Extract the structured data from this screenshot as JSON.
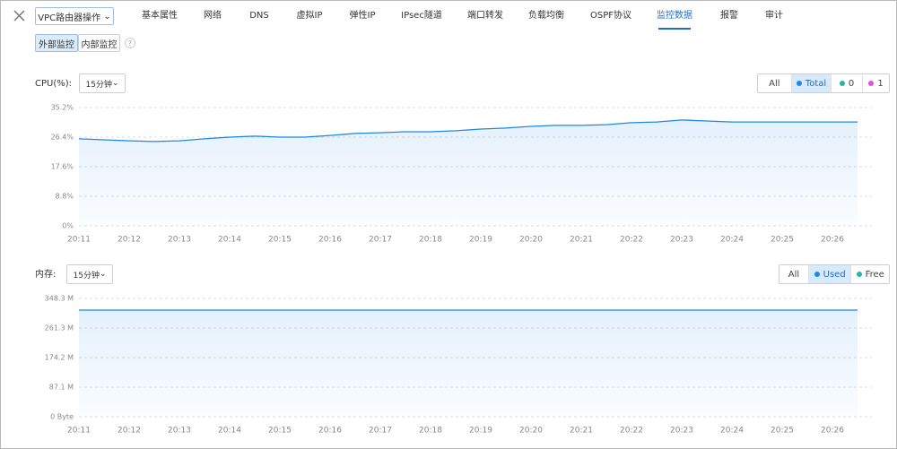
{
  "header": {
    "action_menu": "VPC路由器操作",
    "tabs": [
      "基本属性",
      "网络",
      "DNS",
      "虚拟IP",
      "弹性IP",
      "IPsec隧道",
      "端口转发",
      "负载均衡",
      "OSPF协议",
      "监控数据",
      "报警",
      "审计"
    ],
    "active_tab": 9,
    "subtabs": [
      "外部监控",
      "内部监控"
    ],
    "active_subtab": 0,
    "help": "?"
  },
  "chart_data": [
    {
      "type": "line",
      "title": "CPU(%):",
      "range_select": "15分钟",
      "legend_items": [
        {
          "label": "All"
        },
        {
          "label": "Total",
          "color": "#1e88e5",
          "active": true
        },
        {
          "label": "0",
          "color": "#26b5a6"
        },
        {
          "label": "1",
          "color": "#e64bd8"
        }
      ],
      "categories": [
        "20:11",
        null,
        "20:12",
        null,
        "20:13",
        null,
        "20:14",
        null,
        "20:15",
        null,
        "20:16",
        null,
        "20:17",
        null,
        "20:18",
        null,
        "20:19",
        null,
        "20:20",
        null,
        "20:21",
        null,
        "20:22",
        null,
        "20:23",
        null,
        "20:24",
        null,
        "20:25",
        null,
        "20:26",
        null
      ],
      "series": [
        {
          "name": "Total",
          "color": "#1e88e5",
          "values": [
            25.9,
            25.6,
            25.3,
            25.1,
            25.3,
            25.9,
            26.4,
            26.7,
            26.4,
            26.4,
            26.9,
            27.5,
            27.7,
            28,
            28,
            28.3,
            28.8,
            29.1,
            29.6,
            29.9,
            29.9,
            30.1,
            30.7,
            30.9,
            31.5,
            31.2,
            30.9,
            30.9,
            30.9,
            30.9,
            30.9,
            30.9
          ]
        }
      ],
      "ylim": [
        0,
        35.2
      ],
      "yticks": [
        {
          "value": 0,
          "label": "0%"
        },
        {
          "value": 8.8,
          "label": "8.8%"
        },
        {
          "value": 17.6,
          "label": "17.6%"
        },
        {
          "value": 26.4,
          "label": "26.4%"
        },
        {
          "value": 35.2,
          "label": "35.2%"
        }
      ],
      "grid": true
    },
    {
      "type": "line",
      "title": "内存:",
      "range_select": "15分钟",
      "legend_items": [
        {
          "label": "All"
        },
        {
          "label": "Used",
          "color": "#1e88e5",
          "active": true
        },
        {
          "label": "Free",
          "color": "#26b5a6"
        }
      ],
      "categories": [
        "20:11",
        null,
        "20:12",
        null,
        "20:13",
        null,
        "20:14",
        null,
        "20:15",
        null,
        "20:16",
        null,
        "20:17",
        null,
        "20:18",
        null,
        "20:19",
        null,
        "20:20",
        null,
        "20:21",
        null,
        "20:22",
        null,
        "20:23",
        null,
        "20:24",
        null,
        "20:25",
        null,
        "20:26",
        null
      ],
      "series": [
        {
          "name": "Used",
          "color": "#1e88e5",
          "values": [
            314,
            314,
            314,
            314,
            314,
            314,
            314,
            314,
            314,
            314,
            314,
            314,
            314,
            314,
            314,
            314,
            314,
            314,
            314,
            314,
            314,
            314,
            314,
            314,
            314,
            314,
            314,
            314,
            314,
            314,
            314,
            314
          ]
        }
      ],
      "ylim": [
        0,
        348.3
      ],
      "yticks": [
        {
          "value": 0,
          "label": "0 Byte"
        },
        {
          "value": 87.1,
          "label": "87.1 M"
        },
        {
          "value": 174.2,
          "label": "174.2 M"
        },
        {
          "value": 261.3,
          "label": "261.3 M"
        },
        {
          "value": 348.3,
          "label": "348.3 M"
        }
      ],
      "grid": true
    }
  ]
}
